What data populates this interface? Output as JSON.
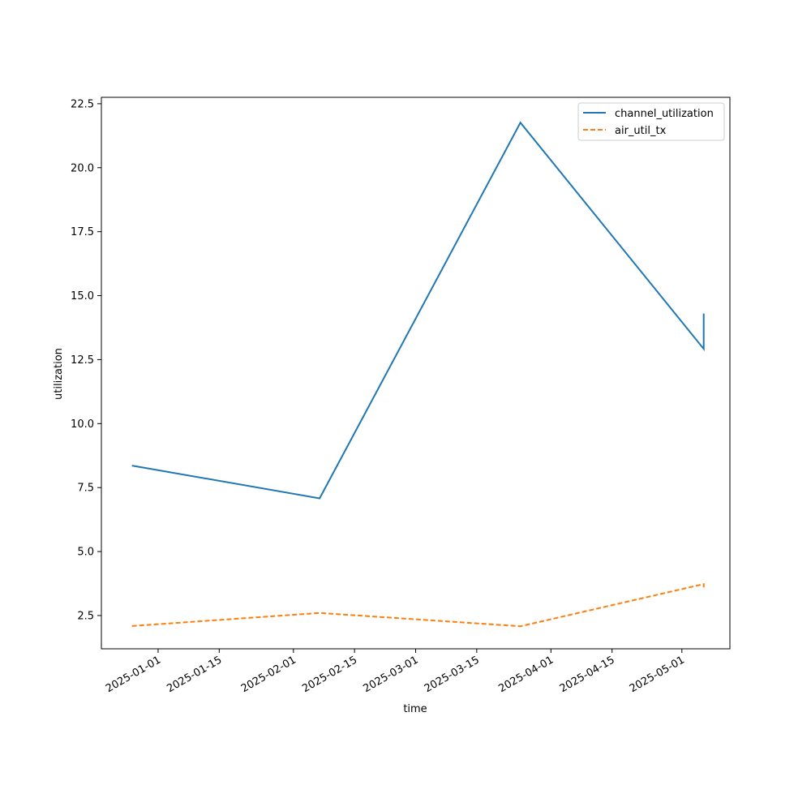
{
  "chart_data": {
    "type": "line",
    "title": "",
    "xlabel": "time",
    "ylabel": "utilization",
    "x_ticks": [
      "2025-01-01",
      "2025-01-15",
      "2025-02-01",
      "2025-02-15",
      "2025-03-01",
      "2025-03-15",
      "2025-04-01",
      "2025-04-15",
      "2025-05-01"
    ],
    "y_ticks": [
      "2.5",
      "5.0",
      "7.5",
      "10.0",
      "12.5",
      "15.0",
      "17.5",
      "20.0",
      "22.5"
    ],
    "ylim": [
      1.2,
      22.75
    ],
    "xlim": [
      "2024-12-19",
      "2025-05-12"
    ],
    "x": [
      "2024-12-26",
      "2025-02-07",
      "2025-03-25",
      "2025-05-06",
      "2025-05-06"
    ],
    "series": [
      {
        "name": "channel_utilization",
        "values": [
          8.36,
          7.08,
          21.76,
          12.92,
          14.3
        ],
        "color": "#1f77b4",
        "style": "solid"
      },
      {
        "name": "air_util_tx",
        "values": [
          2.09,
          2.6,
          2.08,
          3.73,
          3.6
        ],
        "color": "#ff7f0e",
        "style": "dashed"
      }
    ],
    "legend_position": "top-right",
    "grid": false
  }
}
